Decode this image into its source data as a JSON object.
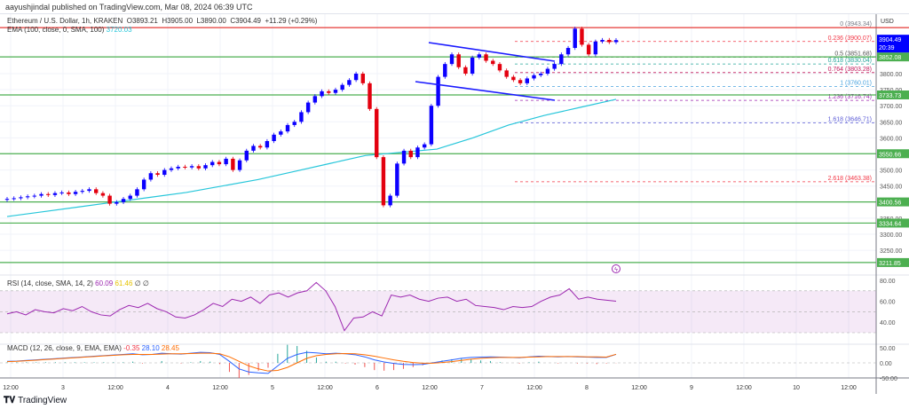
{
  "published": "aayushjindal published on TradingView.com, Mar 08, 2024 06:39 UTC",
  "header": {
    "symbol": "Ethereum / U.S. Dollar, 1h, KRAKEN",
    "o": "O3893.21",
    "h": "H3905.00",
    "l": "L3890.00",
    "c": "C3904.49",
    "change": "+11.29 (+0.29%)"
  },
  "ema_legend": {
    "label": "EMA (100, close, 0, SMA, 100)",
    "value": "3720.03"
  },
  "rsi_legend": {
    "label": "RSI (14, close, SMA, 14, 2)",
    "value": "60.09",
    "sma": "61.46",
    "extra": "∅ ∅"
  },
  "macd_legend": {
    "label": "MACD (12, 26, close, 9, EMA, EMA)",
    "hist": "-0.35",
    "macd": "28.10",
    "signal": "28.45"
  },
  "currency": "USD",
  "current_price": {
    "value": "3904.49",
    "countdown": "20:39"
  },
  "colors": {
    "up": "#0c00ff",
    "down": "#e3000f",
    "ema": "#26c6da",
    "support": "#4caf50",
    "rsi": "#9c27b0",
    "macd": "#2962ff",
    "signal": "#ff6d00"
  },
  "price_axis": [
    "3800.00",
    "3750.00",
    "3700.00",
    "3650.00",
    "3600.00",
    "3500.00",
    "3450.00",
    "3350.00",
    "3300.00",
    "3250.00"
  ],
  "support_levels": [
    "3852.08",
    "3733.73",
    "3550.66",
    "3400.56",
    "3334.64",
    "3211.85"
  ],
  "resistance_level": "3943.34",
  "fib_levels": [
    {
      "label": "0 (3943.34)",
      "price": 3943.34,
      "color": "#787b86"
    },
    {
      "label": "0.236 (3900.07)",
      "price": 3900.07,
      "color": "#f23645"
    },
    {
      "label": "0.5 (3851.68)",
      "price": 3851.68,
      "color": "#555"
    },
    {
      "label": "0.618 (3830.04)",
      "price": 3830.04,
      "color": "#26a69a"
    },
    {
      "label": "0.764 (3803.28)",
      "price": 3803.28,
      "color": "#c2185b"
    },
    {
      "label": "1 (3760.01)",
      "price": 3760.01,
      "color": "#4aa3df"
    },
    {
      "label": "1.236 (3716.74)",
      "price": 3716.74,
      "color": "#9c27b0"
    },
    {
      "label": "1.618 (3646.71)",
      "price": 3646.71,
      "color": "#5b5bd6"
    },
    {
      "label": "2.618 (3463.38)",
      "price": 3463.38,
      "color": "#f23645"
    }
  ],
  "rsi_axis": [
    "80.00",
    "60.00",
    "40.00"
  ],
  "macd_axis": [
    "50.00",
    "0.00",
    "-50.00"
  ],
  "time_axis": [
    "12:00",
    "3",
    "12:00",
    "4",
    "12:00",
    "5",
    "12:00",
    "6",
    "12:00",
    "7",
    "12:00",
    "8",
    "12:00",
    "9",
    "12:00",
    "10",
    "12:00"
  ],
  "closes": [
    3410,
    3412,
    3415,
    3418,
    3420,
    3425,
    3422,
    3428,
    3430,
    3425,
    3432,
    3435,
    3440,
    3428,
    3420,
    3395,
    3400,
    3410,
    3420,
    3440,
    3470,
    3490,
    3485,
    3500,
    3505,
    3510,
    3508,
    3512,
    3505,
    3515,
    3525,
    3518,
    3535,
    3500,
    3530,
    3560,
    3575,
    3570,
    3590,
    3610,
    3620,
    3640,
    3650,
    3680,
    3710,
    3730,
    3745,
    3740,
    3750,
    3765,
    3780,
    3800,
    3770,
    3690,
    3540,
    3390,
    3420,
    3520,
    3560,
    3540,
    3570,
    3580,
    3700,
    3790,
    3830,
    3860,
    3820,
    3800,
    3850,
    3860,
    3840,
    3830,
    3810,
    3790,
    3780,
    3770,
    3785,
    3795,
    3800,
    3815,
    3830,
    3860,
    3880,
    3940,
    3890,
    3860,
    3900,
    3905,
    3898,
    3904.49
  ],
  "ema": [
    3355,
    3370,
    3385,
    3400,
    3415,
    3430,
    3450,
    3470,
    3495,
    3520,
    3545,
    3555,
    3565,
    3600,
    3640,
    3670,
    3695,
    3720
  ],
  "rsi": [
    48,
    50,
    47,
    52,
    50,
    49,
    53,
    51,
    55,
    50,
    47,
    46,
    52,
    56,
    54,
    58,
    53,
    50,
    45,
    44,
    47,
    52,
    58,
    55,
    62,
    60,
    64,
    58,
    66,
    68,
    64,
    68,
    70,
    78,
    70,
    55,
    32,
    44,
    45,
    50,
    46,
    66,
    64,
    66,
    62,
    60,
    63,
    64,
    60,
    62,
    56,
    55,
    54,
    52,
    55,
    54,
    55,
    60,
    64,
    66,
    72,
    62,
    64,
    62,
    61,
    60.09
  ],
  "macd": [
    5,
    6,
    8,
    10,
    12,
    14,
    16,
    18,
    20,
    22,
    24,
    26,
    28,
    30,
    27,
    28,
    32,
    30,
    29,
    32,
    35,
    34,
    28,
    5,
    -20,
    -30,
    -33,
    -35,
    -10,
    15,
    28,
    35,
    33,
    30,
    32,
    30,
    27,
    20,
    10,
    3,
    -2,
    -5,
    -6,
    -5,
    0,
    5,
    10,
    15,
    18,
    19,
    20,
    19,
    18,
    17,
    20,
    22,
    21,
    20,
    21,
    20,
    19,
    18,
    18,
    28.1
  ],
  "signal": [
    4,
    5,
    7,
    9,
    11,
    13,
    15,
    17,
    19,
    21,
    23,
    25,
    27,
    28,
    28,
    28,
    29,
    30,
    30,
    31,
    32,
    32,
    30,
    20,
    5,
    -10,
    -20,
    -27,
    -25,
    -15,
    0,
    15,
    24,
    28,
    30,
    31,
    30,
    27,
    22,
    16,
    10,
    5,
    1,
    -1,
    -1,
    1,
    4,
    8,
    12,
    15,
    17,
    18,
    18,
    18,
    19,
    20,
    21,
    21,
    21,
    21,
    20,
    20,
    19,
    28.45
  ],
  "brand": "TradingView"
}
